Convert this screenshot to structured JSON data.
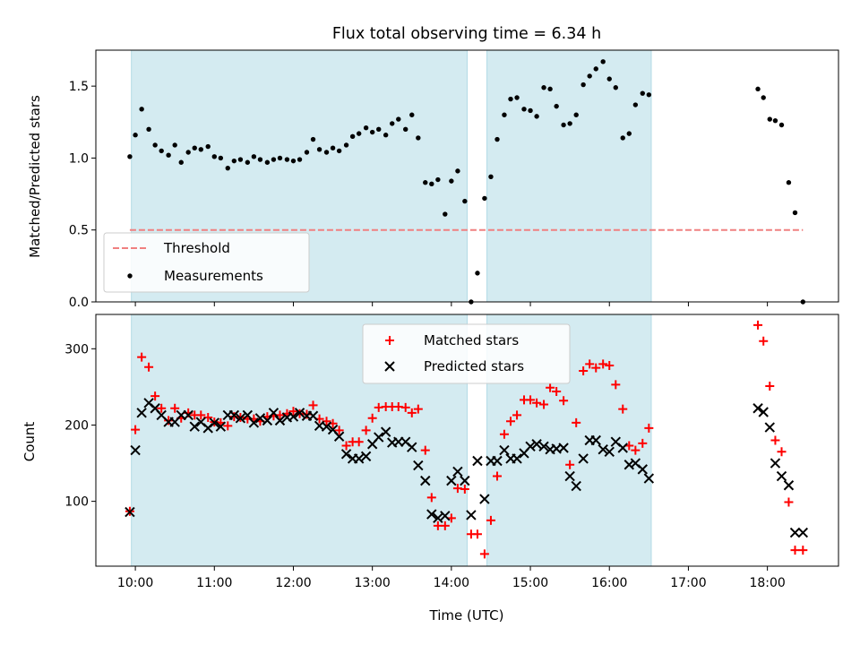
{
  "figure": {
    "title": "Flux total observing time = 6.34 h"
  },
  "chart_data": [
    {
      "type": "scatter",
      "ylabel": "Matched/Predicted stars",
      "xlim_hours": [
        9.5,
        18.9
      ],
      "ylim": [
        0,
        1.75
      ],
      "yticks": [
        0.0,
        0.5,
        1.0,
        1.5
      ],
      "ytick_labels": [
        "0.0",
        "0.5",
        "1.0",
        "1.5"
      ],
      "legend": {
        "placement": "lower-left",
        "entries": [
          "Threshold",
          "Measurements"
        ]
      },
      "shaded_intervals_hours": [
        [
          9.95,
          14.2
        ],
        [
          14.45,
          16.53
        ]
      ],
      "shade_color": "#d4ebf1",
      "threshold": {
        "name": "Threshold",
        "value": 0.5,
        "x_range_hours": [
          9.93,
          18.45
        ],
        "color": "#f08080",
        "style": "dashed"
      },
      "series": [
        {
          "name": "Measurements",
          "color": "#000000",
          "marker": "dot",
          "x": [
            9.93,
            10.0,
            10.08,
            10.17,
            10.25,
            10.33,
            10.42,
            10.5,
            10.58,
            10.67,
            10.75,
            10.83,
            10.92,
            11.0,
            11.08,
            11.17,
            11.25,
            11.33,
            11.42,
            11.5,
            11.58,
            11.67,
            11.75,
            11.83,
            11.92,
            12.0,
            12.08,
            12.17,
            12.25,
            12.33,
            12.42,
            12.5,
            12.58,
            12.67,
            12.75,
            12.83,
            12.92,
            13.0,
            13.08,
            13.17,
            13.25,
            13.33,
            13.42,
            13.5,
            13.58,
            13.67,
            13.75,
            13.83,
            13.92,
            14.0,
            14.08,
            14.17,
            14.25,
            14.33,
            14.42,
            14.5,
            14.58,
            14.67,
            14.75,
            14.83,
            14.92,
            15.0,
            15.08,
            15.17,
            15.25,
            15.33,
            15.42,
            15.5,
            15.58,
            15.67,
            15.75,
            15.83,
            15.92,
            16.0,
            16.08,
            16.17,
            16.25,
            16.33,
            16.42,
            16.5,
            17.88,
            17.95,
            18.03,
            18.1,
            18.18,
            18.27,
            18.35,
            18.45
          ],
          "y": [
            1.01,
            1.16,
            1.34,
            1.2,
            1.09,
            1.05,
            1.02,
            1.09,
            0.97,
            1.04,
            1.07,
            1.06,
            1.08,
            1.01,
            1.0,
            0.93,
            0.98,
            0.99,
            0.97,
            1.01,
            0.99,
            0.97,
            0.99,
            1.0,
            0.99,
            0.98,
            0.99,
            1.04,
            1.13,
            1.06,
            1.04,
            1.07,
            1.05,
            1.09,
            1.15,
            1.17,
            1.21,
            1.18,
            1.2,
            1.16,
            1.24,
            1.27,
            1.2,
            1.3,
            1.14,
            0.83,
            0.82,
            0.85,
            0.61,
            0.84,
            0.91,
            0.7,
            0.0,
            0.2,
            0.72,
            0.87,
            1.13,
            1.3,
            1.41,
            1.42,
            1.34,
            1.33,
            1.29,
            1.49,
            1.48,
            1.36,
            1.23,
            1.24,
            1.3,
            1.51,
            1.57,
            1.62,
            1.67,
            1.55,
            1.49,
            1.14,
            1.17,
            1.37,
            1.45,
            1.44,
            1.48,
            1.42,
            1.27,
            1.26,
            1.23,
            0.83,
            0.62,
            0.0
          ]
        }
      ]
    },
    {
      "type": "scatter",
      "xlabel": "Time (UTC)",
      "ylabel": "Count",
      "xlim_hours": [
        9.5,
        18.9
      ],
      "ylim": [
        15,
        345
      ],
      "yticks": [
        100,
        200,
        300
      ],
      "ytick_labels": [
        "100",
        "200",
        "300"
      ],
      "xticks_hours": [
        10,
        11,
        12,
        13,
        14,
        15,
        16,
        17,
        18
      ],
      "xtick_labels": [
        "10:00",
        "11:00",
        "12:00",
        "13:00",
        "14:00",
        "15:00",
        "16:00",
        "17:00",
        "18:00"
      ],
      "legend": {
        "placement": "upper-center",
        "entries": [
          "Matched stars",
          "Predicted stars"
        ]
      },
      "shaded_intervals_hours": [
        [
          9.95,
          14.2
        ],
        [
          14.45,
          16.53
        ]
      ],
      "shade_color": "#d4ebf1",
      "series": [
        {
          "name": "Matched stars",
          "color": "#ff0000",
          "marker": "plus",
          "x": [
            9.93,
            10.0,
            10.08,
            10.17,
            10.25,
            10.33,
            10.42,
            10.5,
            10.58,
            10.67,
            10.75,
            10.83,
            10.92,
            11.0,
            11.08,
            11.17,
            11.25,
            11.33,
            11.42,
            11.5,
            11.58,
            11.67,
            11.75,
            11.83,
            11.92,
            12.0,
            12.08,
            12.17,
            12.25,
            12.33,
            12.42,
            12.5,
            12.58,
            12.67,
            12.75,
            12.83,
            12.92,
            13.0,
            13.08,
            13.17,
            13.25,
            13.33,
            13.42,
            13.5,
            13.58,
            13.67,
            13.75,
            13.83,
            13.92,
            14.0,
            14.08,
            14.17,
            14.25,
            14.33,
            14.42,
            14.5,
            14.58,
            14.67,
            14.75,
            14.83,
            14.92,
            15.0,
            15.08,
            15.17,
            15.25,
            15.33,
            15.42,
            15.5,
            15.58,
            15.67,
            15.75,
            15.83,
            15.92,
            16.0,
            16.08,
            16.17,
            16.25,
            16.33,
            16.42,
            16.5,
            17.88,
            17.95,
            18.03,
            18.1,
            18.18,
            18.27,
            18.35,
            18.45
          ],
          "y": [
            87,
            194,
            289,
            276,
            238,
            222,
            206,
            222,
            209,
            216,
            213,
            213,
            210,
            204,
            203,
            199,
            211,
            210,
            208,
            208,
            205,
            211,
            212,
            213,
            215,
            218,
            215,
            214,
            226,
            208,
            205,
            202,
            193,
            173,
            178,
            178,
            193,
            209,
            223,
            224,
            224,
            224,
            223,
            216,
            221,
            167,
            105,
            68,
            68,
            78,
            117,
            116,
            57,
            57,
            31,
            75,
            133,
            188,
            205,
            213,
            233,
            233,
            229,
            227,
            249,
            244,
            232,
            148,
            203,
            271,
            280,
            275,
            280,
            278,
            253,
            221,
            173,
            167,
            176,
            196,
            331,
            310,
            251,
            180,
            165,
            99,
            36,
            36
          ]
        },
        {
          "name": "Predicted stars",
          "color": "#000000",
          "marker": "x",
          "x": [
            9.93,
            10.0,
            10.08,
            10.17,
            10.25,
            10.33,
            10.42,
            10.5,
            10.58,
            10.67,
            10.75,
            10.83,
            10.92,
            11.0,
            11.08,
            11.17,
            11.25,
            11.33,
            11.42,
            11.5,
            11.58,
            11.67,
            11.75,
            11.83,
            11.92,
            12.0,
            12.08,
            12.17,
            12.25,
            12.33,
            12.42,
            12.5,
            12.58,
            12.67,
            12.75,
            12.83,
            12.92,
            13.0,
            13.08,
            13.17,
            13.25,
            13.33,
            13.42,
            13.5,
            13.58,
            13.67,
            13.75,
            13.83,
            13.92,
            14.0,
            14.08,
            14.17,
            14.25,
            14.33,
            14.42,
            14.5,
            14.58,
            14.67,
            14.75,
            14.83,
            14.92,
            15.0,
            15.08,
            15.17,
            15.25,
            15.33,
            15.42,
            15.5,
            15.58,
            15.67,
            15.75,
            15.83,
            15.92,
            16.0,
            16.08,
            16.17,
            16.25,
            16.33,
            16.42,
            16.5,
            17.88,
            17.95,
            18.03,
            18.1,
            18.18,
            18.27,
            18.35,
            18.45
          ],
          "y": [
            86,
            167,
            216,
            229,
            222,
            213,
            204,
            204,
            213,
            213,
            198,
            204,
            196,
            203,
            198,
            213,
            213,
            209,
            213,
            203,
            209,
            206,
            216,
            206,
            210,
            211,
            216,
            212,
            212,
            199,
            198,
            194,
            185,
            162,
            156,
            156,
            159,
            175,
            184,
            191,
            177,
            178,
            178,
            171,
            147,
            127,
            83,
            78,
            81,
            127,
            139,
            127,
            82,
            153,
            103,
            153,
            153,
            167,
            156,
            156,
            163,
            172,
            175,
            172,
            168,
            169,
            170,
            133,
            120,
            156,
            180,
            180,
            168,
            165,
            178,
            170,
            148,
            150,
            142,
            130,
            222,
            217,
            197,
            150,
            133,
            121,
            59,
            59
          ]
        }
      ]
    }
  ]
}
